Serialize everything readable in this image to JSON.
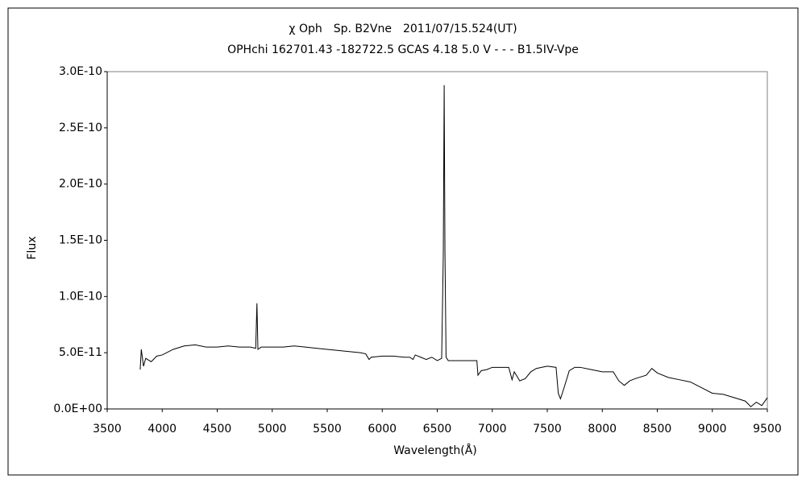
{
  "chart_data": {
    "type": "line",
    "title": "χ Oph　Sp. B2Vne　2011/07/15.524(UT)",
    "subtitle": "OPHchi 162701.43 -182722.5 GCAS 4.18 5.0 V - - - B1.5IV-Vpe",
    "x_label": "Wavelength(Å)",
    "y_label": "Flux",
    "color": "#000000",
    "x": [
      3800,
      3810,
      3830,
      3850,
      3900,
      3950,
      4000,
      4100,
      4200,
      4300,
      4400,
      4500,
      4600,
      4700,
      4800,
      4850,
      4861,
      4870,
      4900,
      5000,
      5100,
      5200,
      5300,
      5400,
      5500,
      5600,
      5700,
      5800,
      5850,
      5880,
      5900,
      6000,
      6100,
      6200,
      6250,
      6280,
      6300,
      6350,
      6400,
      6450,
      6500,
      6540,
      6555,
      6563,
      6570,
      6580,
      6600,
      6700,
      6800,
      6860,
      6870,
      6900,
      6950,
      7000,
      7100,
      7150,
      7180,
      7200,
      7250,
      7300,
      7350,
      7400,
      7500,
      7580,
      7600,
      7620,
      7650,
      7700,
      7750,
      7800,
      7900,
      8000,
      8100,
      8150,
      8200,
      8250,
      8300,
      8400,
      8450,
      8500,
      8600,
      8700,
      8800,
      8900,
      9000,
      9100,
      9200,
      9300,
      9350,
      9400,
      9450,
      9500
    ],
    "values": [
      3.5e-11,
      5.3e-11,
      3.8e-11,
      4.5e-11,
      4.2e-11,
      4.7e-11,
      4.8e-11,
      5.3e-11,
      5.6e-11,
      5.7e-11,
      5.5e-11,
      5.5e-11,
      5.6e-11,
      5.5e-11,
      5.5e-11,
      5.4e-11,
      9.4e-11,
      5.3e-11,
      5.5e-11,
      5.5e-11,
      5.5e-11,
      5.6e-11,
      5.5e-11,
      5.4e-11,
      5.3e-11,
      5.2e-11,
      5.1e-11,
      5e-11,
      4.9e-11,
      4.4e-11,
      4.6e-11,
      4.7e-11,
      4.7e-11,
      4.6e-11,
      4.6e-11,
      4.4e-11,
      4.8e-11,
      4.6e-11,
      4.4e-11,
      4.6e-11,
      4.3e-11,
      4.5e-11,
      1.38e-10,
      2.88e-10,
      1.4e-10,
      4.6e-11,
      4.3e-11,
      4.3e-11,
      4.3e-11,
      4.3e-11,
      3e-11,
      3.4e-11,
      3.5e-11,
      3.7e-11,
      3.7e-11,
      3.7e-11,
      2.6e-11,
      3.3e-11,
      2.5e-11,
      2.7e-11,
      3.3e-11,
      3.6e-11,
      3.8e-11,
      3.7e-11,
      1.4e-11,
      9e-12,
      1.8e-11,
      3.4e-11,
      3.7e-11,
      3.7e-11,
      3.5e-11,
      3.3e-11,
      3.3e-11,
      2.5e-11,
      2.1e-11,
      2.5e-11,
      2.7e-11,
      3e-11,
      3.6e-11,
      3.2e-11,
      2.8e-11,
      2.6e-11,
      2.4e-11,
      1.9e-11,
      1.4e-11,
      1.3e-11,
      1e-11,
      7e-12,
      2e-12,
      6e-12,
      3e-12,
      1e-11
    ],
    "xlim": [
      3500,
      9500
    ],
    "xticks": [
      3500,
      4000,
      4500,
      5000,
      5500,
      6000,
      6500,
      7000,
      7500,
      8000,
      8500,
      9000,
      9500
    ],
    "ylim": [
      0,
      3e-10
    ],
    "yticks": [
      {
        "value": 0,
        "label": "0.0E+00"
      },
      {
        "value": 5e-11,
        "label": "5.0E-11"
      },
      {
        "value": 1e-10,
        "label": "1.0E-10"
      },
      {
        "value": 1.5e-10,
        "label": "1.5E-10"
      },
      {
        "value": 2e-10,
        "label": "2.0E-10"
      },
      {
        "value": 2.5e-10,
        "label": "2.5E-10"
      },
      {
        "value": 3e-10,
        "label": "3.0E-10"
      }
    ],
    "grid": false
  }
}
